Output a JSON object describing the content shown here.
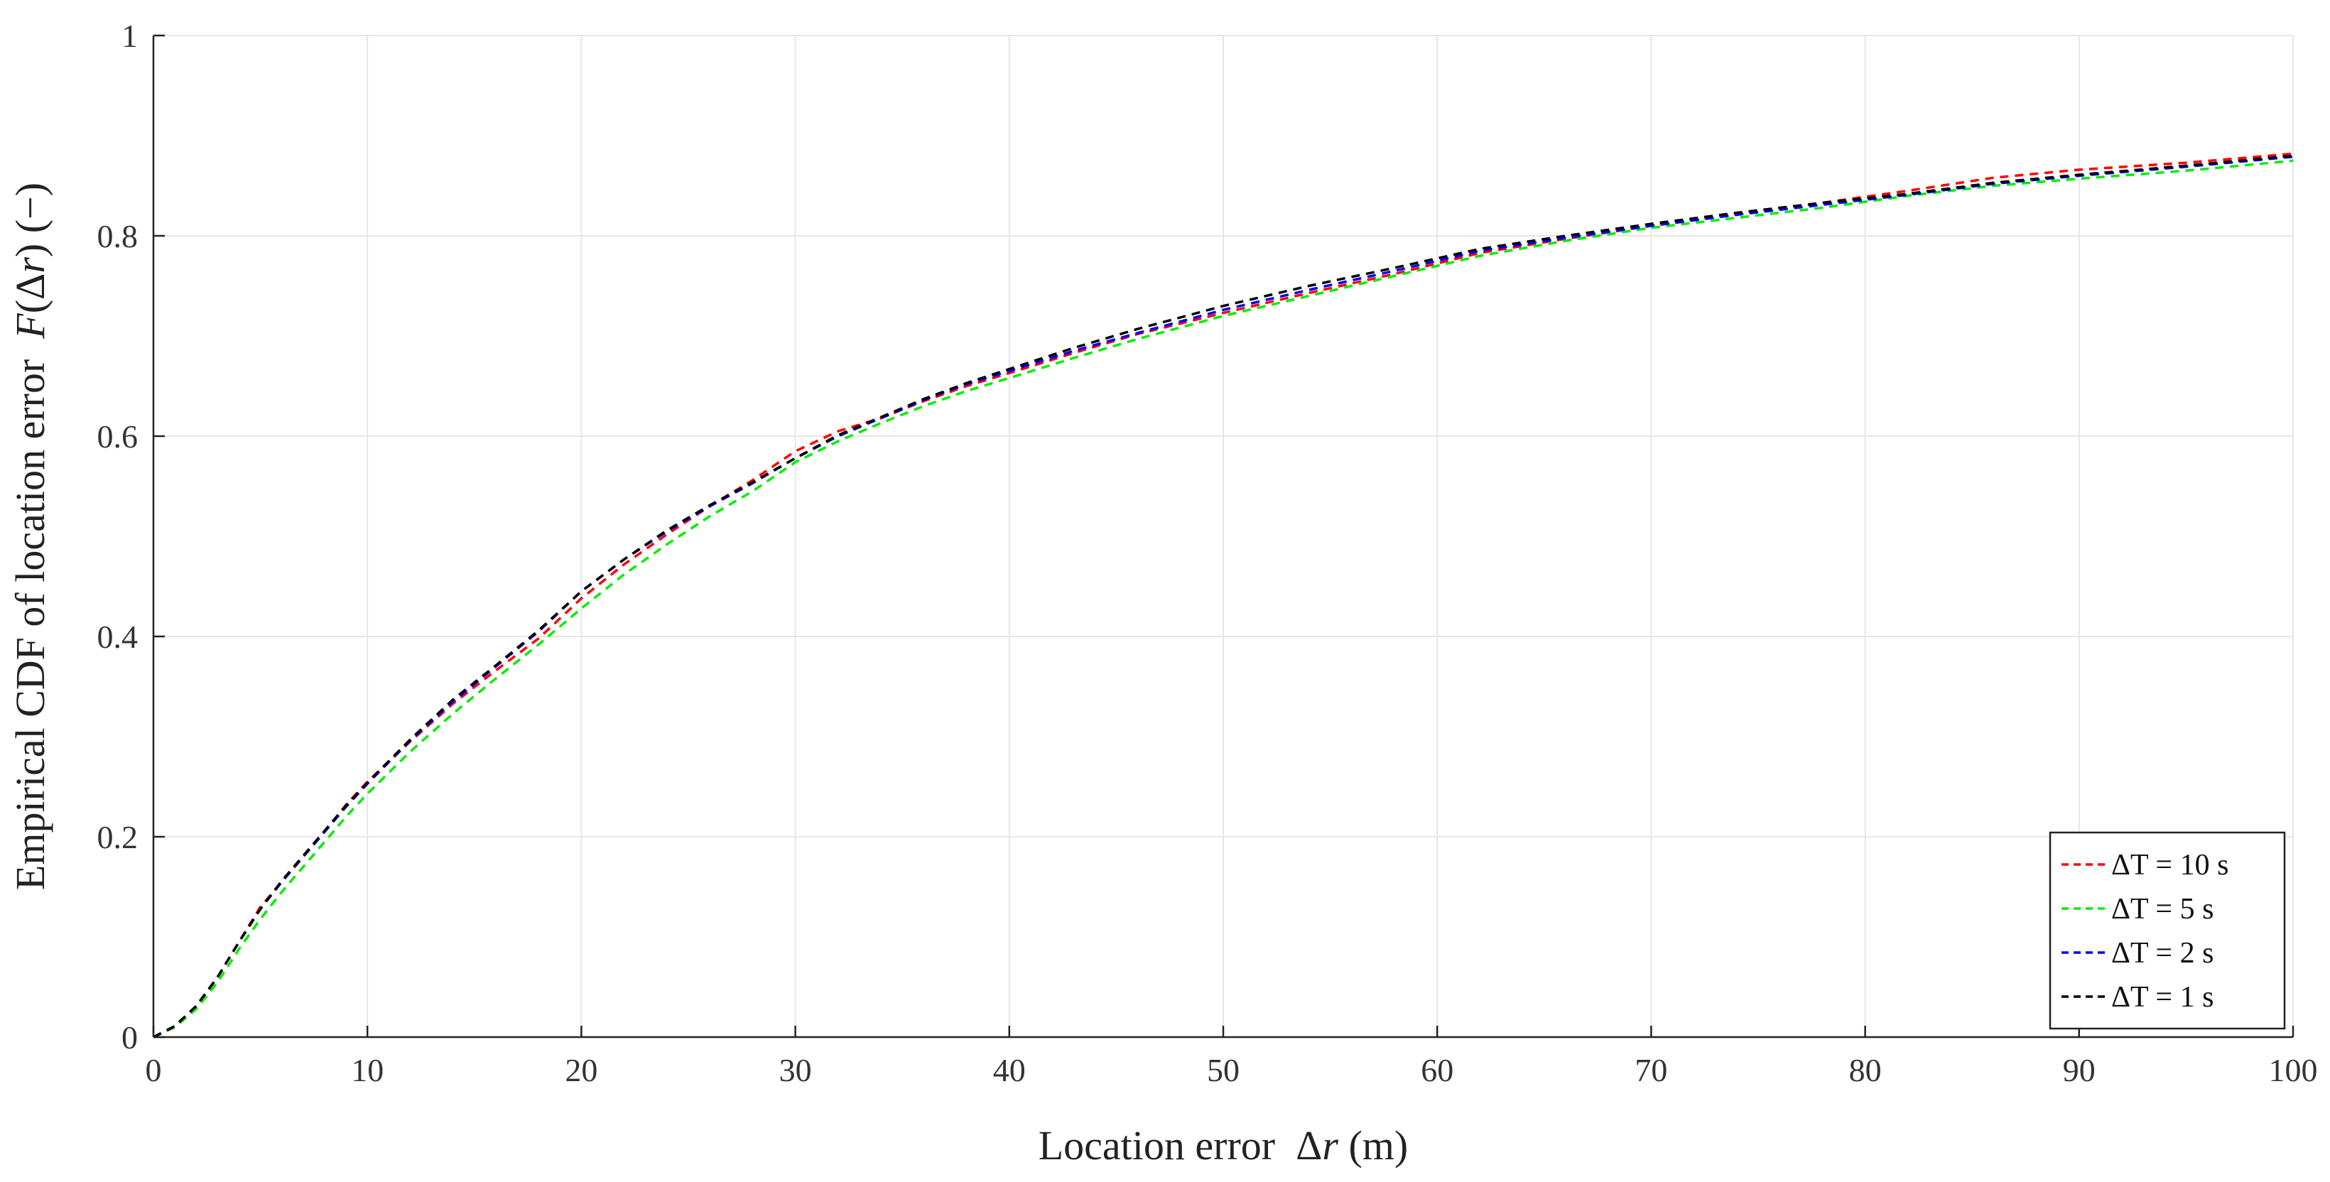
{
  "chart_data": {
    "type": "line",
    "title": "",
    "xlabel_parts": [
      "Location error  ",
      "Δ",
      "r",
      " (m)"
    ],
    "ylabel_parts": [
      "Empirical CDF of location error  ",
      "F",
      "(Δ",
      "r",
      ") (−)"
    ],
    "xlim": [
      0,
      100
    ],
    "ylim": [
      0,
      1
    ],
    "x_ticks": [
      0,
      10,
      20,
      30,
      40,
      50,
      60,
      70,
      80,
      90,
      100
    ],
    "x_tick_labels": [
      "0",
      "10",
      "20",
      "30",
      "40",
      "50",
      "60",
      "70",
      "80",
      "90",
      "100"
    ],
    "y_ticks": [
      0,
      0.2,
      0.4,
      0.6,
      0.8,
      1
    ],
    "y_tick_labels": [
      "0",
      "0.2",
      "0.4",
      "0.6",
      "0.8",
      "1"
    ],
    "grid": true,
    "legend_position": "bottom-right",
    "x": [
      0,
      1,
      2,
      3,
      4,
      5,
      6,
      7,
      8,
      9,
      10,
      12,
      14,
      16,
      18,
      20,
      22,
      24,
      26,
      28,
      30,
      32,
      34,
      36,
      38,
      40,
      43,
      46,
      50,
      54,
      58,
      62,
      66,
      70,
      74,
      78,
      82,
      86,
      90,
      95,
      100
    ],
    "series": [
      {
        "name": "ΔT = 10 s",
        "color": "#ff0000",
        "values": [
          0,
          0.01,
          0.03,
          0.06,
          0.095,
          0.13,
          0.155,
          0.18,
          0.205,
          0.232,
          0.255,
          0.295,
          0.333,
          0.366,
          0.398,
          0.438,
          0.472,
          0.502,
          0.53,
          0.556,
          0.585,
          0.605,
          0.618,
          0.635,
          0.65,
          0.663,
          0.683,
          0.702,
          0.723,
          0.743,
          0.762,
          0.783,
          0.797,
          0.81,
          0.822,
          0.833,
          0.845,
          0.858,
          0.866,
          0.873,
          0.882
        ]
      },
      {
        "name": "ΔT = 5 s",
        "color": "#00ee00",
        "values": [
          0,
          0.01,
          0.028,
          0.055,
          0.088,
          0.118,
          0.145,
          0.17,
          0.195,
          0.22,
          0.243,
          0.285,
          0.323,
          0.358,
          0.392,
          0.428,
          0.462,
          0.492,
          0.52,
          0.545,
          0.574,
          0.595,
          0.613,
          0.63,
          0.645,
          0.658,
          0.678,
          0.697,
          0.72,
          0.74,
          0.76,
          0.78,
          0.795,
          0.808,
          0.818,
          0.828,
          0.84,
          0.85,
          0.857,
          0.865,
          0.875
        ]
      },
      {
        "name": "ΔT = 2 s",
        "color": "#0000ff",
        "values": [
          0,
          0.011,
          0.031,
          0.06,
          0.095,
          0.128,
          0.155,
          0.18,
          0.205,
          0.23,
          0.253,
          0.296,
          0.335,
          0.37,
          0.405,
          0.445,
          0.477,
          0.505,
          0.53,
          0.553,
          0.578,
          0.6,
          0.618,
          0.636,
          0.652,
          0.665,
          0.685,
          0.703,
          0.726,
          0.746,
          0.765,
          0.785,
          0.798,
          0.81,
          0.821,
          0.831,
          0.841,
          0.852,
          0.86,
          0.869,
          0.879
        ]
      },
      {
        "name": "ΔT = 1 s",
        "color": "#000000",
        "values": [
          0,
          0.011,
          0.031,
          0.06,
          0.095,
          0.128,
          0.156,
          0.181,
          0.206,
          0.231,
          0.254,
          0.297,
          0.337,
          0.371,
          0.406,
          0.445,
          0.477,
          0.506,
          0.531,
          0.554,
          0.578,
          0.601,
          0.619,
          0.637,
          0.653,
          0.667,
          0.688,
          0.707,
          0.73,
          0.75,
          0.768,
          0.787,
          0.8,
          0.812,
          0.823,
          0.833,
          0.842,
          0.853,
          0.861,
          0.87,
          0.88
        ]
      }
    ]
  }
}
